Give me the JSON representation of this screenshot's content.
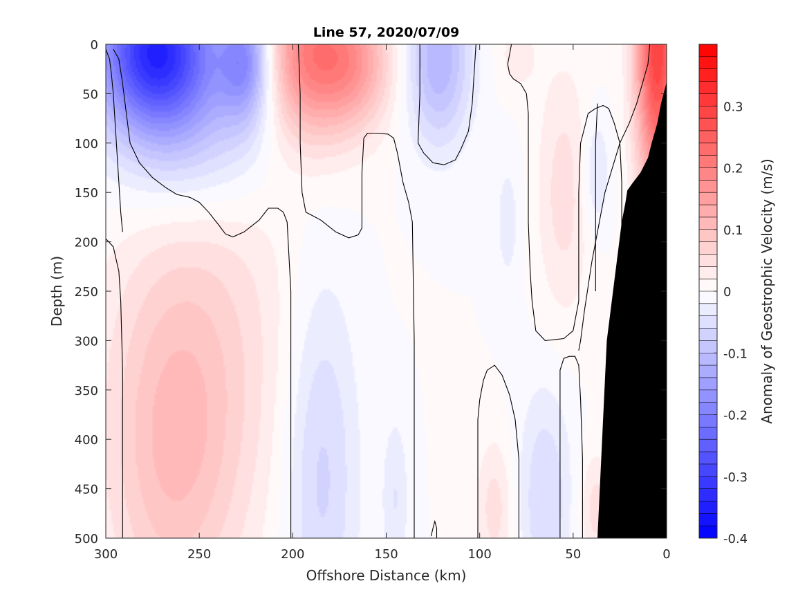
{
  "chart_data": {
    "type": "heatmap",
    "title": "Line 57, 2020/07/09",
    "xlabel": "Offshore Distance (km)",
    "ylabel": "Depth (m)",
    "xlim": [
      300,
      0
    ],
    "ylim": [
      0,
      500
    ],
    "x_reversed": true,
    "y_reversed": true,
    "x_ticks": [
      300,
      250,
      200,
      150,
      100,
      50,
      0
    ],
    "y_ticks": [
      0,
      50,
      100,
      150,
      200,
      250,
      300,
      350,
      400,
      450,
      500
    ],
    "colorbar": {
      "label": "Anomaly of Geostrophic Velocity (m/s)",
      "range": [
        -0.4,
        0.4
      ],
      "ticks": [
        -0.4,
        -0.3,
        -0.2,
        -0.1,
        0,
        0.1,
        0.2,
        0.3
      ],
      "tick_labels": [
        "-0.4",
        "-0.3",
        "-0.2",
        "-0.1",
        "0",
        "0.1",
        "0.2",
        "0.3"
      ],
      "levels": 40,
      "negative_color": "#0000ff",
      "positive_color": "#ff0000",
      "zero_color": "#ffffff"
    },
    "features": [
      {
        "x": 273,
        "depth": 5,
        "value": -0.33,
        "sx": 22,
        "sy": 55
      },
      {
        "x": 225,
        "depth": 15,
        "value": -0.17,
        "sx": 10,
        "sy": 45
      },
      {
        "x": 255,
        "depth": 90,
        "value": -0.08,
        "sx": 30,
        "sy": 60
      },
      {
        "x": 190,
        "depth": 10,
        "value": 0.2,
        "sx": 18,
        "sy": 60
      },
      {
        "x": 165,
        "depth": 20,
        "value": 0.1,
        "sx": 14,
        "sy": 45
      },
      {
        "x": 122,
        "depth": 15,
        "value": -0.12,
        "sx": 12,
        "sy": 60
      },
      {
        "x": 5,
        "depth": 0,
        "value": 0.3,
        "sx": 8,
        "sy": 110
      },
      {
        "x": 265,
        "depth": 420,
        "value": 0.08,
        "sx": 25,
        "sy": 130
      },
      {
        "x": 245,
        "depth": 300,
        "value": 0.05,
        "sx": 35,
        "sy": 150
      },
      {
        "x": 185,
        "depth": 430,
        "value": -0.07,
        "sx": 14,
        "sy": 140
      },
      {
        "x": 145,
        "depth": 460,
        "value": -0.04,
        "sx": 5,
        "sy": 60
      },
      {
        "x": 92,
        "depth": 470,
        "value": 0.05,
        "sx": 7,
        "sy": 50
      },
      {
        "x": 65,
        "depth": 460,
        "value": -0.06,
        "sx": 10,
        "sy": 80
      },
      {
        "x": 55,
        "depth": 150,
        "value": 0.05,
        "sx": 10,
        "sy": 90
      },
      {
        "x": 85,
        "depth": 180,
        "value": -0.03,
        "sx": 5,
        "sy": 50
      },
      {
        "x": 38,
        "depth": 130,
        "value": -0.05,
        "sx": 5,
        "sy": 40
      },
      {
        "x": 38,
        "depth": 470,
        "value": 0.05,
        "sx": 6,
        "sy": 40
      },
      {
        "x": 80,
        "depth": 10,
        "value": 0.03,
        "sx": 8,
        "sy": 30
      }
    ],
    "zero_contours": [
      [
        [
          296,
          5
        ],
        [
          293,
          15
        ],
        [
          291,
          40
        ],
        [
          289,
          70
        ],
        [
          287,
          100
        ],
        [
          282,
          120
        ],
        [
          275,
          135
        ],
        [
          268,
          145
        ],
        [
          262,
          152
        ],
        [
          255,
          155
        ],
        [
          250,
          160
        ],
        [
          245,
          170
        ],
        [
          240,
          182
        ],
        [
          236,
          192
        ],
        [
          232,
          195
        ],
        [
          226,
          190
        ],
        [
          218,
          178
        ],
        [
          213,
          166
        ],
        [
          208,
          166
        ],
        [
          205,
          170
        ],
        [
          203,
          180
        ],
        [
          201,
          250
        ],
        [
          201,
          350
        ],
        [
          201,
          500
        ]
      ],
      [
        [
          300,
          197
        ],
        [
          296,
          205
        ],
        [
          293,
          230
        ],
        [
          292,
          260
        ],
        [
          291,
          330
        ],
        [
          291,
          430
        ],
        [
          291,
          500
        ]
      ],
      [
        [
          197,
          0
        ],
        [
          196,
          50
        ],
        [
          196,
          100
        ],
        [
          195,
          150
        ],
        [
          193,
          170
        ],
        [
          190,
          173
        ],
        [
          185,
          178
        ],
        [
          177,
          190
        ],
        [
          170,
          196
        ],
        [
          165,
          193
        ],
        [
          163,
          186
        ],
        [
          163,
          130
        ],
        [
          162,
          95
        ],
        [
          160,
          90
        ],
        [
          155,
          90
        ],
        [
          149,
          91
        ],
        [
          146,
          95
        ],
        [
          144,
          110
        ],
        [
          141,
          140
        ],
        [
          138,
          160
        ],
        [
          136,
          180
        ],
        [
          135,
          300
        ],
        [
          135,
          400
        ],
        [
          135,
          500
        ]
      ],
      [
        [
          132,
          0
        ],
        [
          132,
          50
        ],
        [
          133,
          100
        ],
        [
          130,
          110
        ],
        [
          125,
          120
        ],
        [
          119,
          122
        ],
        [
          113,
          117
        ],
        [
          110,
          106
        ],
        [
          106,
          88
        ],
        [
          104,
          60
        ],
        [
          103,
          30
        ],
        [
          102,
          0
        ]
      ],
      [
        [
          126,
          498
        ],
        [
          125,
          490
        ],
        [
          124,
          483
        ],
        [
          123,
          490
        ],
        [
          123,
          500
        ]
      ],
      [
        [
          83,
          0
        ],
        [
          84,
          10
        ],
        [
          85,
          20
        ],
        [
          84,
          30
        ],
        [
          82,
          35
        ],
        [
          78,
          40
        ],
        [
          75,
          50
        ],
        [
          74,
          70
        ],
        [
          74,
          120
        ],
        [
          74,
          180
        ],
        [
          73,
          230
        ],
        [
          72,
          260
        ],
        [
          70,
          290
        ],
        [
          65,
          300
        ],
        [
          55,
          298
        ],
        [
          50,
          290
        ],
        [
          47,
          260
        ],
        [
          47,
          210
        ],
        [
          47,
          150
        ],
        [
          46,
          100
        ],
        [
          44,
          85
        ],
        [
          42,
          70
        ],
        [
          38,
          65
        ],
        [
          34,
          62
        ],
        [
          31,
          65
        ],
        [
          28,
          80
        ],
        [
          25,
          100
        ],
        [
          24,
          140
        ],
        [
          24,
          200
        ],
        [
          25,
          250
        ],
        [
          26,
          300
        ],
        [
          27,
          340
        ],
        [
          28,
          360
        ],
        [
          30,
          370
        ]
      ],
      [
        [
          45,
          500
        ],
        [
          45,
          420
        ],
        [
          46,
          360
        ],
        [
          47,
          325
        ],
        [
          49,
          316
        ],
        [
          52,
          316
        ],
        [
          55,
          318
        ],
        [
          57,
          330
        ],
        [
          57,
          400
        ],
        [
          57,
          500
        ]
      ],
      [
        [
          101,
          500
        ],
        [
          101,
          420
        ],
        [
          101,
          380
        ],
        [
          100,
          360
        ],
        [
          98,
          340
        ],
        [
          96,
          330
        ],
        [
          92,
          325
        ],
        [
          88,
          335
        ],
        [
          84,
          355
        ],
        [
          81,
          380
        ],
        [
          79,
          420
        ],
        [
          79,
          500
        ]
      ],
      [
        [
          9,
          0
        ],
        [
          10,
          20
        ],
        [
          13,
          40
        ],
        [
          16,
          60
        ],
        [
          20,
          80
        ],
        [
          25,
          100
        ],
        [
          29,
          125
        ],
        [
          33,
          150
        ],
        [
          36,
          180
        ],
        [
          40,
          220
        ],
        [
          44,
          270
        ],
        [
          46,
          300
        ],
        [
          47,
          310
        ]
      ],
      [
        [
          300,
          5
        ],
        [
          298,
          15
        ],
        [
          297,
          30
        ],
        [
          296,
          50
        ],
        [
          295,
          80
        ],
        [
          294,
          110
        ],
        [
          293,
          140
        ],
        [
          292,
          170
        ],
        [
          291,
          190
        ]
      ],
      [
        [
          37,
          60
        ],
        [
          38,
          100
        ],
        [
          38,
          150
        ],
        [
          38,
          200
        ],
        [
          38,
          250
        ]
      ]
    ],
    "bathymetry": [
      [
        0,
        38
      ],
      [
        3,
        60
      ],
      [
        5,
        80
      ],
      [
        8,
        100
      ],
      [
        10,
        115
      ],
      [
        14,
        130
      ],
      [
        18,
        140
      ],
      [
        21,
        148
      ],
      [
        22,
        160
      ],
      [
        24,
        180
      ],
      [
        26,
        210
      ],
      [
        28,
        240
      ],
      [
        30,
        270
      ],
      [
        32,
        300
      ],
      [
        33,
        340
      ],
      [
        34,
        380
      ],
      [
        35,
        420
      ],
      [
        36,
        460
      ],
      [
        37,
        500
      ]
    ],
    "bathymetry_color": "#000000"
  }
}
